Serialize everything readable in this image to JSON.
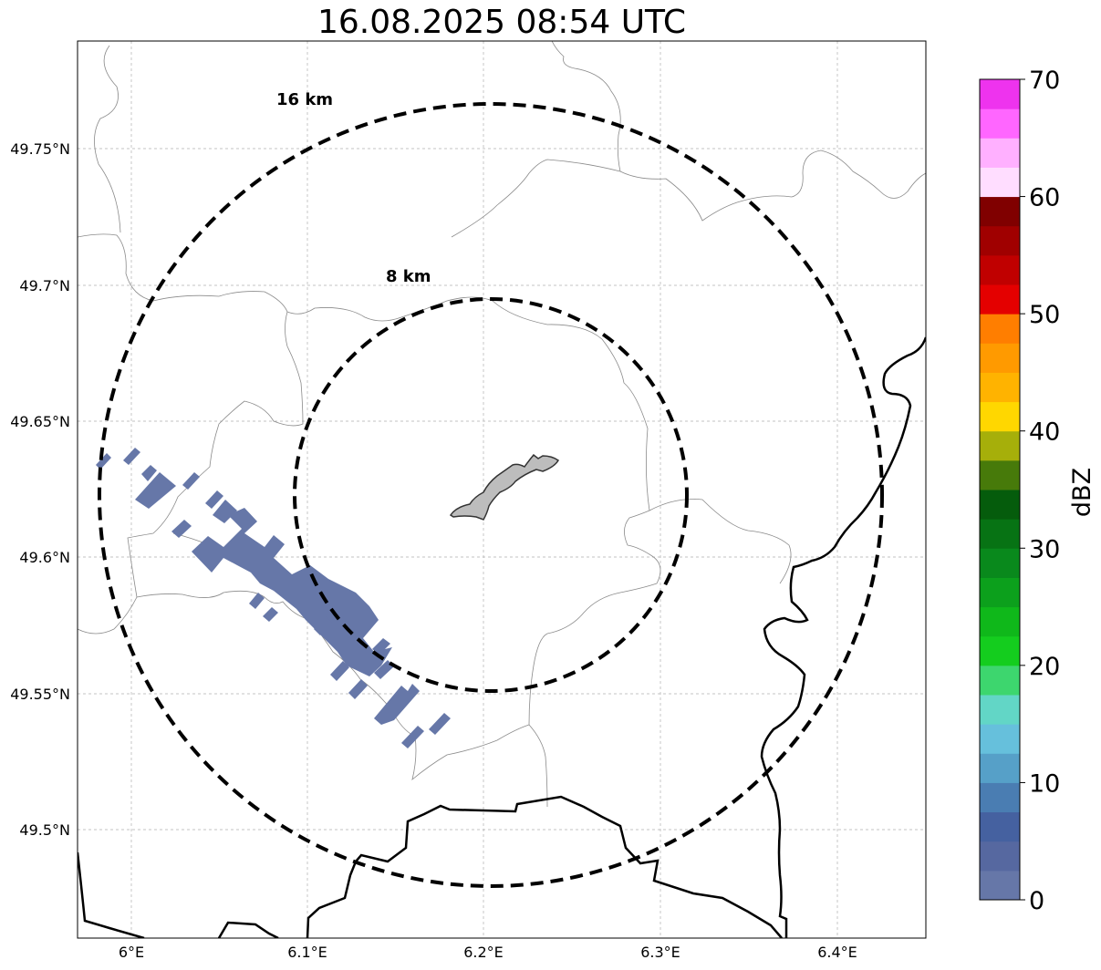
{
  "title": "16.08.2025 08:54 UTC",
  "map": {
    "lat_ticks": [
      "49.75°N",
      "49.7°N",
      "49.65°N",
      "49.6°N",
      "49.55°N",
      "49.5°N"
    ],
    "lon_ticks": [
      "6°E",
      "6.1°E",
      "6.2°E",
      "6.3°E",
      "6.4°E"
    ],
    "extent": {
      "lon": [
        5.97,
        6.45
      ],
      "lat": [
        49.46,
        49.79
      ]
    },
    "grid": true,
    "radar_center": {
      "lon": 6.203,
      "lat": 49.623
    },
    "rings": [
      {
        "label": "16 km",
        "radius_km": 16
      },
      {
        "label": "8 km",
        "radius_km": 8
      }
    ],
    "echo_color": "#6677a8",
    "city_fill": "#bdbdbd"
  },
  "colorbar": {
    "label": "dBZ",
    "ticks": [
      "0",
      "10",
      "20",
      "30",
      "40",
      "50",
      "60",
      "70"
    ],
    "colors": [
      "#6677a8",
      "#5668a0",
      "#4561a0",
      "#4a7db2",
      "#56a0c8",
      "#66c0dc",
      "#62d6c6",
      "#3dd66e",
      "#14cd1e",
      "#0fb81a",
      "#0ca01c",
      "#09891c",
      "#077314",
      "#055c0c",
      "#477a0a",
      "#a6af0a",
      "#ffd700",
      "#ffb300",
      "#ff9a00",
      "#ff7e00",
      "#e40000",
      "#c00000",
      "#a00000",
      "#800000",
      "#ffddff",
      "#ffb0ff",
      "#ff66ff",
      "#ee33ee"
    ]
  }
}
